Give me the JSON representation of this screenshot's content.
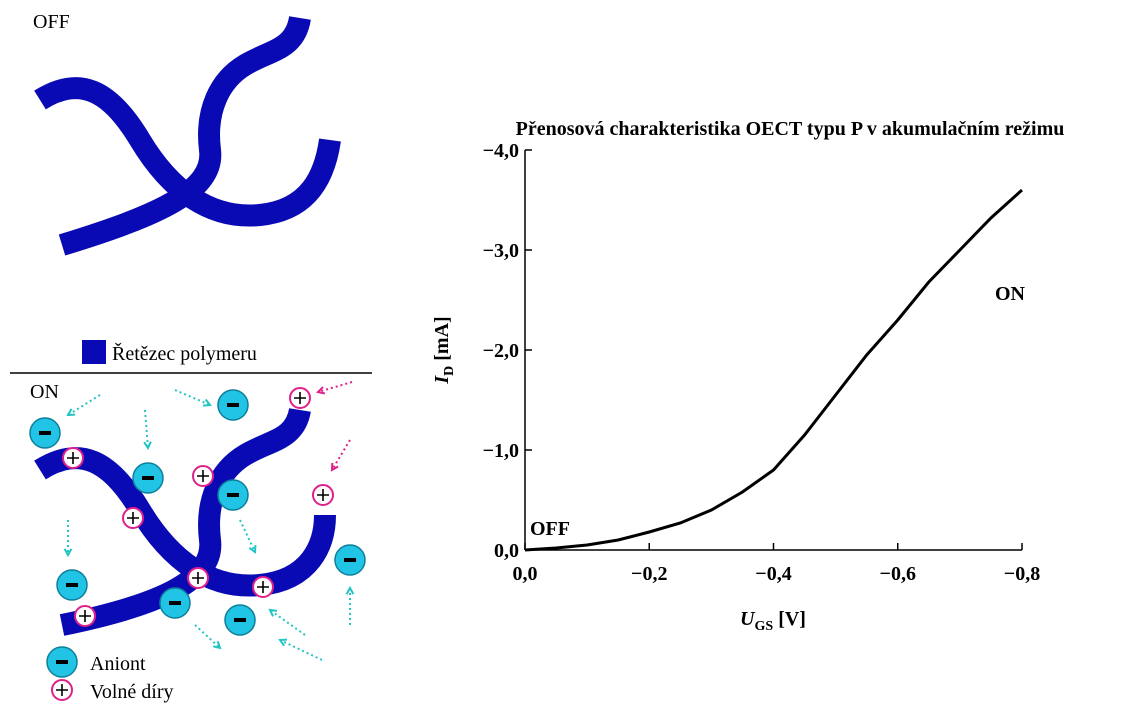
{
  "diagram": {
    "off_label": "OFF",
    "on_label": "ON",
    "legend": [
      "Řetězec polymeru",
      "Aniont",
      "Volné díry"
    ]
  },
  "chart_data": {
    "type": "line",
    "title": "Přenosová charakteristika OECT typu P v akumulačním režimu",
    "x_label": {
      "main": "U",
      "sub": "GS",
      "unit": "[V]"
    },
    "y_label": {
      "main": "I",
      "sub": "D",
      "unit": "[mA]"
    },
    "annotations": [
      "ON",
      "OFF"
    ],
    "x": [
      0,
      -0.05,
      -0.1,
      -0.15,
      -0.2,
      -0.25,
      -0.3,
      -0.35,
      -0.4,
      -0.45,
      -0.5,
      -0.55,
      -0.6,
      -0.65,
      -0.7,
      -0.75,
      -0.8
    ],
    "values": [
      0,
      -0.02,
      -0.05,
      -0.1,
      -0.18,
      -0.27,
      -0.4,
      -0.58,
      -0.8,
      -1.15,
      -1.55,
      -1.95,
      -2.3,
      -2.68,
      -3.0,
      -3.32,
      -3.6
    ],
    "color": "#000000",
    "xlim": [
      0,
      -0.8
    ],
    "ylim": [
      0,
      -4
    ],
    "xticks": [
      {
        "value": 0,
        "label": "0,0"
      },
      {
        "value": -0.2,
        "label": "−0,2"
      },
      {
        "value": -0.4,
        "label": "−0,4"
      },
      {
        "value": -0.6,
        "label": "−0,6"
      },
      {
        "value": -0.8,
        "label": "−0,8"
      }
    ],
    "yticks": [
      {
        "value": 0,
        "label": "0,0"
      },
      {
        "value": -1,
        "label": "−1,0"
      },
      {
        "value": -2,
        "label": "−2,0"
      },
      {
        "value": -3,
        "label": "−3,0"
      },
      {
        "value": -4,
        "label": "−4,0"
      }
    ]
  }
}
